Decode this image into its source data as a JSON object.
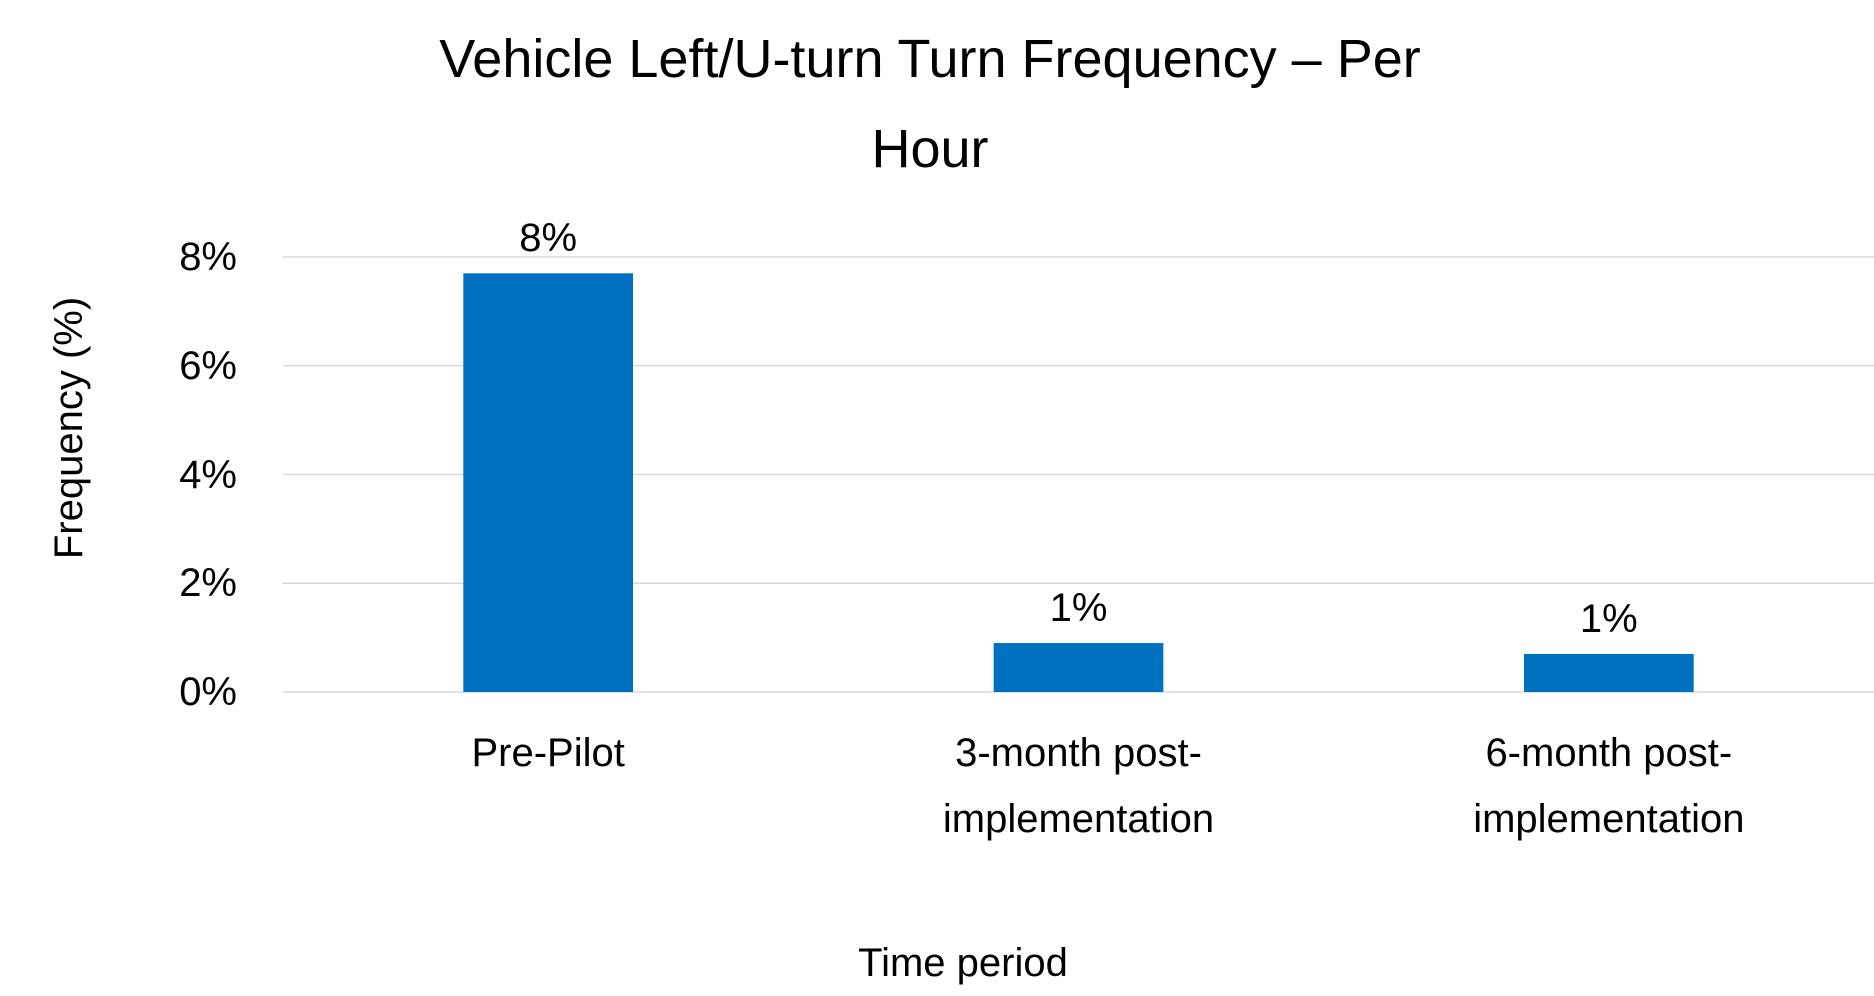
{
  "chart_data": {
    "type": "bar",
    "title": "Vehicle Left/U-turn Turn Frequency – Per Hour",
    "x_label": "Time period",
    "y_label": "Frequency (%)",
    "categories": [
      "Pre-Pilot",
      "3-month post-implementation",
      "6-month post-implementation"
    ],
    "values": [
      7.7,
      0.9,
      0.7
    ],
    "value_labels": [
      "8%",
      "1%",
      "1%"
    ],
    "color": "#0070c0",
    "ylim": [
      0,
      8
    ],
    "yticks": [
      {
        "value": 0,
        "label": "0%"
      },
      {
        "value": 2,
        "label": "2%"
      },
      {
        "value": 4,
        "label": "4%"
      },
      {
        "value": 6,
        "label": "6%"
      },
      {
        "value": 8,
        "label": "8%"
      }
    ],
    "grid": true
  }
}
